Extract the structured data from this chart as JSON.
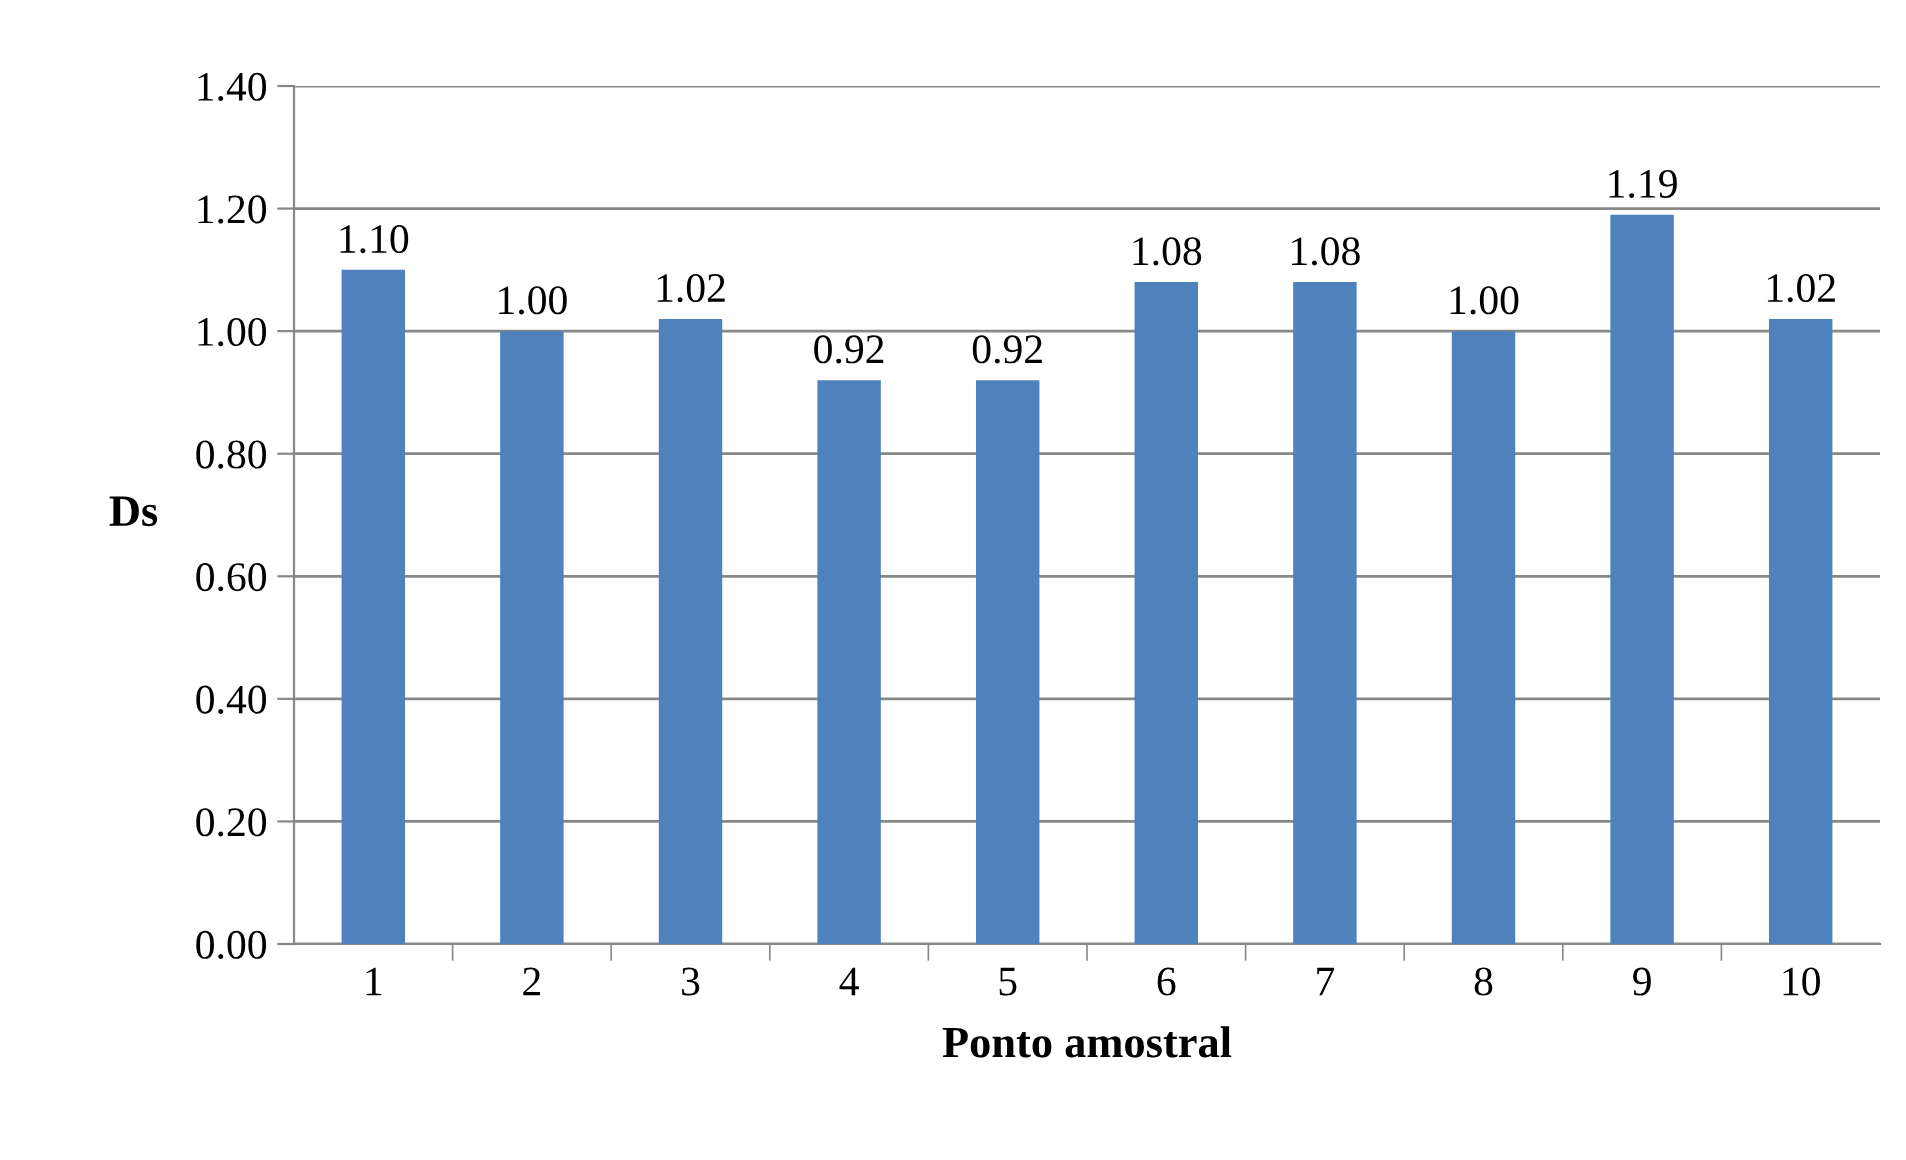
{
  "chart_data": {
    "type": "bar",
    "xlabel": "Ponto amostral",
    "ylabel": "Ds",
    "categories": [
      "1",
      "2",
      "3",
      "4",
      "5",
      "6",
      "7",
      "8",
      "9",
      "10"
    ],
    "values": [
      1.1,
      1.0,
      1.02,
      0.92,
      0.92,
      1.08,
      1.08,
      1.0,
      1.19,
      1.02
    ],
    "value_labels": [
      "1.10",
      "1.00",
      "1.02",
      "0.92",
      "0.92",
      "1.08",
      "1.08",
      "1.00",
      "1.19",
      "1.02"
    ],
    "color": "#4f81bd",
    "ylim": [
      0,
      1.4
    ],
    "yticks": [
      {
        "value": 0,
        "label": "0.00"
      },
      {
        "value": 0.2,
        "label": "0.20"
      },
      {
        "value": 0.4,
        "label": "0.40"
      },
      {
        "value": 0.6,
        "label": "0.60"
      },
      {
        "value": 0.8,
        "label": "0.80"
      },
      {
        "value": 1.0,
        "label": "1.00"
      },
      {
        "value": 1.2,
        "label": "1.20"
      },
      {
        "value": 1.4,
        "label": "1.40"
      }
    ],
    "grid": "y"
  }
}
